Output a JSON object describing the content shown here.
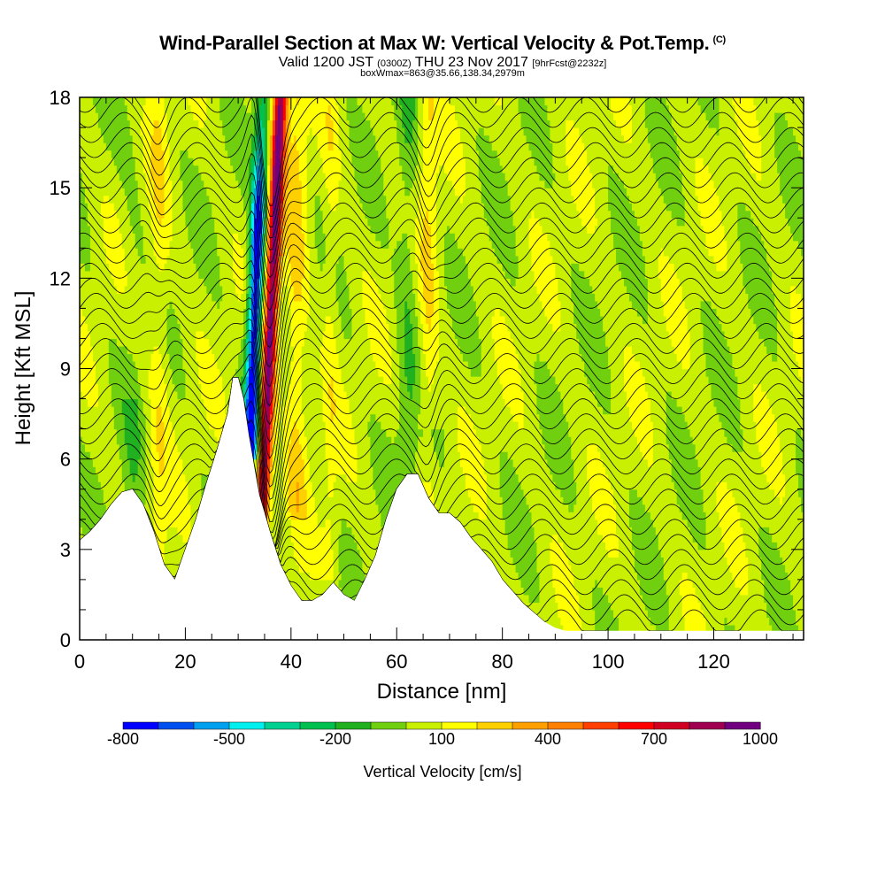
{
  "header": {
    "title": "Wind-Parallel Section at Max W: Vertical Velocity & Pot.Temp.",
    "copyright": "(C)",
    "valid_prefix": "Valid 1200 JST",
    "valid_zulu": "(0300Z)",
    "valid_date": "THU 23 Nov 2017",
    "forecast": "[9hrFcst@2232z]",
    "box_info": "boxWmax=863@35.66,138.34,2979m"
  },
  "chart_data": {
    "type": "heatmap",
    "xlabel": "Distance [nm]",
    "ylabel": "Height [Kft MSL]",
    "xlim": [
      0,
      137
    ],
    "ylim": [
      0,
      18
    ],
    "x_ticks": [
      0,
      20,
      40,
      60,
      80,
      100,
      120
    ],
    "y_ticks": [
      0,
      3,
      6,
      9,
      12,
      15,
      18
    ],
    "colorbar": {
      "title": "Vertical Velocity [cm/s]",
      "levels": [
        -800,
        -700,
        -600,
        -500,
        -400,
        -300,
        -200,
        -100,
        0,
        100,
        200,
        300,
        400,
        500,
        600,
        700,
        800,
        900,
        1000
      ],
      "labels": [
        "-800",
        "-500",
        "-200",
        "100",
        "400",
        "700",
        "1000"
      ],
      "label_values": [
        -800,
        -500,
        -200,
        100,
        400,
        700,
        1000
      ],
      "colors": [
        "#0000ff",
        "#0050f0",
        "#00a0f0",
        "#00f0f0",
        "#00d090",
        "#00c050",
        "#20b020",
        "#70d010",
        "#c8f000",
        "#ffff00",
        "#ffd000",
        "#ffa000",
        "#ff8000",
        "#ff4000",
        "#ff0000",
        "#d00020",
        "#a00050",
        "#700080"
      ]
    },
    "terrain_profile": {
      "x": [
        0,
        2,
        4,
        6,
        8,
        10,
        12,
        14,
        16,
        18,
        20,
        22,
        24,
        26,
        28,
        29,
        30,
        31,
        32,
        33,
        34,
        36,
        38,
        40,
        42,
        44,
        46,
        48,
        50,
        52,
        54,
        56,
        58,
        60,
        62,
        64,
        66,
        68,
        70,
        72,
        74,
        76,
        78,
        80,
        82,
        84,
        86,
        88,
        90,
        92,
        94,
        96,
        100,
        110,
        120,
        130,
        137
      ],
      "y": [
        3.3,
        3.6,
        4.0,
        4.5,
        4.9,
        5.0,
        4.5,
        3.6,
        2.5,
        2.0,
        3.0,
        4.0,
        5.2,
        6.3,
        7.5,
        8.7,
        8.7,
        8.0,
        6.8,
        5.8,
        4.8,
        3.6,
        2.5,
        1.8,
        1.3,
        1.3,
        1.5,
        1.9,
        1.5,
        1.3,
        2.0,
        2.8,
        4.0,
        5.0,
        5.5,
        5.5,
        4.7,
        4.2,
        4.2,
        3.9,
        3.4,
        3.0,
        2.6,
        2.0,
        1.6,
        1.2,
        0.9,
        0.6,
        0.4,
        0.3,
        0.3,
        0.3,
        0.3,
        0.3,
        0.3,
        0.3,
        0.3
      ]
    },
    "updraft_core": {
      "x": 36,
      "max_w_cm_s": 863
    },
    "downdraft_core": {
      "x": 33,
      "min_w_cm_s": -800
    }
  }
}
